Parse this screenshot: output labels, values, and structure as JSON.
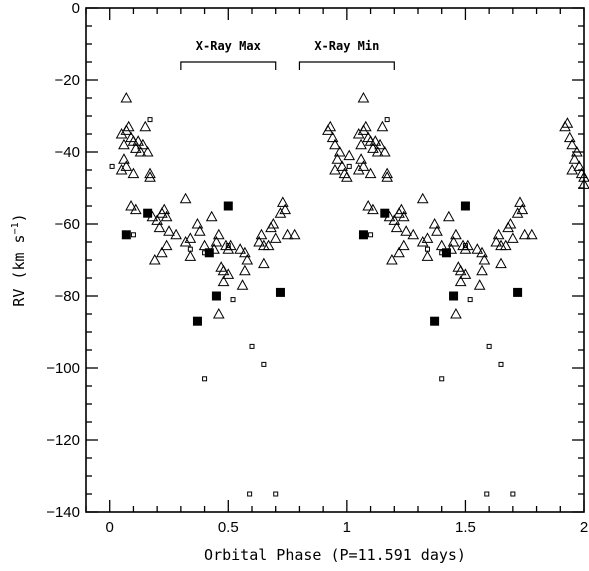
{
  "chart_data": {
    "type": "scatter",
    "xlabel": "Orbital Phase (P=11.591 days)",
    "ylabel": "RV (km s",
    "ylabel_sup": "−1",
    "ylabel_close": ")",
    "xlim": [
      -0.1,
      2.0
    ],
    "ylim": [
      -140,
      0
    ],
    "x_ticks": [
      {
        "value": 0,
        "label": "0"
      },
      {
        "value": 0.5,
        "label": "0.5"
      },
      {
        "value": 1,
        "label": "1"
      },
      {
        "value": 1.5,
        "label": "1.5"
      },
      {
        "value": 2,
        "label": "2"
      }
    ],
    "y_ticks": [
      {
        "value": 0,
        "label": "0"
      },
      {
        "value": -20,
        "label": "−20"
      },
      {
        "value": -40,
        "label": "−40"
      },
      {
        "value": -60,
        "label": "−60"
      },
      {
        "value": -80,
        "label": "−80"
      },
      {
        "value": -100,
        "label": "−100"
      },
      {
        "value": -120,
        "label": "−120"
      },
      {
        "value": -140,
        "label": "−140"
      }
    ],
    "annotations": [
      {
        "text": "X-Ray Max",
        "x_range": [
          0.3,
          0.7
        ],
        "y": -15
      },
      {
        "text": "X-Ray Min",
        "x_range": [
          0.8,
          1.2
        ],
        "y": -15
      }
    ],
    "series": [
      {
        "marker": "open-triangle",
        "points": [
          [
            0.07,
            -25
          ],
          [
            0.05,
            -35
          ],
          [
            0.06,
            -38
          ],
          [
            0.07,
            -34
          ],
          [
            0.08,
            -33
          ],
          [
            0.09,
            -36
          ],
          [
            0.1,
            -37
          ],
          [
            0.11,
            -39
          ],
          [
            0.12,
            -37
          ],
          [
            0.13,
            -40
          ],
          [
            0.14,
            -38
          ],
          [
            0.15,
            -33
          ],
          [
            0.16,
            -40
          ],
          [
            0.06,
            -42
          ],
          [
            0.07,
            -44
          ],
          [
            0.05,
            -45
          ],
          [
            0.1,
            -46
          ],
          [
            0.17,
            -46
          ],
          [
            0.17,
            -47
          ],
          [
            0.11,
            -56
          ],
          [
            0.09,
            -55
          ],
          [
            0.18,
            -58
          ],
          [
            0.2,
            -59
          ],
          [
            0.22,
            -57
          ],
          [
            0.23,
            -56
          ],
          [
            0.24,
            -58
          ],
          [
            0.21,
            -61
          ],
          [
            0.19,
            -70
          ],
          [
            0.25,
            -62
          ],
          [
            0.24,
            -66
          ],
          [
            0.22,
            -68
          ],
          [
            0.28,
            -63
          ],
          [
            0.32,
            -53
          ],
          [
            0.32,
            -65
          ],
          [
            0.34,
            -64
          ],
          [
            0.34,
            -69
          ],
          [
            0.37,
            -60
          ],
          [
            0.38,
            -62
          ],
          [
            0.4,
            -66
          ],
          [
            0.43,
            -58
          ],
          [
            0.44,
            -67
          ],
          [
            0.45,
            -65
          ],
          [
            0.46,
            -63
          ],
          [
            0.47,
            -72
          ],
          [
            0.48,
            -73
          ],
          [
            0.49,
            -66
          ],
          [
            0.5,
            -67
          ],
          [
            0.51,
            -66
          ],
          [
            0.5,
            -74
          ],
          [
            0.48,
            -76
          ],
          [
            0.46,
            -85
          ],
          [
            0.55,
            -67
          ],
          [
            0.57,
            -68
          ],
          [
            0.58,
            -70
          ],
          [
            0.56,
            -77
          ],
          [
            0.63,
            -65
          ],
          [
            0.64,
            -63
          ],
          [
            0.65,
            -66
          ],
          [
            0.67,
            -66
          ],
          [
            0.68,
            -61
          ],
          [
            0.69,
            -60
          ],
          [
            0.7,
            -64
          ],
          [
            0.72,
            -57
          ],
          [
            0.73,
            -54
          ],
          [
            0.74,
            -56
          ],
          [
            0.75,
            -63
          ],
          [
            0.78,
            -63
          ],
          [
            0.65,
            -71
          ],
          [
            0.57,
            -73
          ],
          [
            1.07,
            -25
          ],
          [
            1.05,
            -35
          ],
          [
            1.06,
            -38
          ],
          [
            1.07,
            -34
          ],
          [
            1.08,
            -33
          ],
          [
            1.09,
            -36
          ],
          [
            1.1,
            -37
          ],
          [
            1.11,
            -39
          ],
          [
            1.12,
            -37
          ],
          [
            1.13,
            -40
          ],
          [
            1.14,
            -38
          ],
          [
            1.15,
            -33
          ],
          [
            1.16,
            -40
          ],
          [
            1.06,
            -42
          ],
          [
            1.07,
            -44
          ],
          [
            1.05,
            -45
          ],
          [
            1.1,
            -46
          ],
          [
            1.17,
            -46
          ],
          [
            1.17,
            -47
          ],
          [
            1.11,
            -56
          ],
          [
            1.09,
            -55
          ],
          [
            1.18,
            -58
          ],
          [
            1.2,
            -59
          ],
          [
            1.22,
            -57
          ],
          [
            1.23,
            -56
          ],
          [
            1.24,
            -58
          ],
          [
            1.21,
            -61
          ],
          [
            1.19,
            -70
          ],
          [
            1.25,
            -62
          ],
          [
            1.24,
            -66
          ],
          [
            1.22,
            -68
          ],
          [
            1.28,
            -63
          ],
          [
            1.32,
            -53
          ],
          [
            1.32,
            -65
          ],
          [
            1.34,
            -64
          ],
          [
            1.34,
            -69
          ],
          [
            1.37,
            -60
          ],
          [
            1.38,
            -62
          ],
          [
            1.4,
            -66
          ],
          [
            1.43,
            -58
          ],
          [
            1.44,
            -67
          ],
          [
            1.45,
            -65
          ],
          [
            1.46,
            -63
          ],
          [
            1.47,
            -72
          ],
          [
            1.48,
            -73
          ],
          [
            1.49,
            -66
          ],
          [
            1.5,
            -67
          ],
          [
            1.51,
            -66
          ],
          [
            1.5,
            -74
          ],
          [
            1.48,
            -76
          ],
          [
            1.46,
            -85
          ],
          [
            1.55,
            -67
          ],
          [
            1.57,
            -68
          ],
          [
            1.58,
            -70
          ],
          [
            1.56,
            -77
          ],
          [
            1.63,
            -65
          ],
          [
            1.64,
            -63
          ],
          [
            1.65,
            -66
          ],
          [
            1.67,
            -66
          ],
          [
            1.68,
            -61
          ],
          [
            1.69,
            -60
          ],
          [
            1.7,
            -64
          ],
          [
            1.72,
            -57
          ],
          [
            1.73,
            -54
          ],
          [
            1.74,
            -56
          ],
          [
            1.75,
            -63
          ],
          [
            1.78,
            -63
          ],
          [
            1.65,
            -71
          ],
          [
            1.57,
            -73
          ],
          [
            0.93,
            -33
          ],
          [
            0.92,
            -34
          ],
          [
            0.94,
            -36
          ],
          [
            0.95,
            -38
          ],
          [
            0.96,
            -42
          ],
          [
            0.97,
            -40
          ],
          [
            0.98,
            -44
          ],
          [
            0.99,
            -46
          ],
          [
            1.0,
            -47
          ],
          [
            0.95,
            -45
          ],
          [
            1.01,
            -41
          ],
          [
            1.93,
            -32
          ],
          [
            1.92,
            -33
          ],
          [
            1.94,
            -36
          ],
          [
            1.95,
            -38
          ],
          [
            1.96,
            -42
          ],
          [
            1.97,
            -40
          ],
          [
            1.98,
            -44
          ],
          [
            1.99,
            -46
          ],
          [
            2.0,
            -47
          ],
          [
            1.95,
            -45
          ],
          [
            2.0,
            -49
          ]
        ]
      },
      {
        "marker": "small-open-square",
        "points": [
          [
            0.01,
            -44
          ],
          [
            0.1,
            -63
          ],
          [
            0.17,
            -31
          ],
          [
            0.34,
            -67
          ],
          [
            0.4,
            -103
          ],
          [
            0.5,
            -66
          ],
          [
            0.52,
            -81
          ],
          [
            0.6,
            -94
          ],
          [
            0.65,
            -99
          ],
          [
            0.59,
            -135
          ],
          [
            0.7,
            -135
          ],
          [
            0.4,
            -68
          ],
          [
            1.01,
            -44
          ],
          [
            1.1,
            -63
          ],
          [
            1.17,
            -31
          ],
          [
            1.34,
            -67
          ],
          [
            1.4,
            -103
          ],
          [
            1.5,
            -66
          ],
          [
            1.52,
            -81
          ],
          [
            1.6,
            -94
          ],
          [
            1.65,
            -99
          ],
          [
            1.59,
            -135
          ],
          [
            1.7,
            -135
          ],
          [
            1.4,
            -68
          ]
        ]
      },
      {
        "marker": "filled-square",
        "points": [
          [
            0.07,
            -63
          ],
          [
            0.16,
            -57
          ],
          [
            0.37,
            -87
          ],
          [
            0.42,
            -68
          ],
          [
            0.45,
            -80
          ],
          [
            0.5,
            -55
          ],
          [
            0.72,
            -79
          ],
          [
            1.07,
            -63
          ],
          [
            1.16,
            -57
          ],
          [
            1.37,
            -87
          ],
          [
            1.42,
            -68
          ],
          [
            1.45,
            -80
          ],
          [
            1.5,
            -55
          ],
          [
            1.72,
            -79
          ]
        ]
      }
    ]
  }
}
